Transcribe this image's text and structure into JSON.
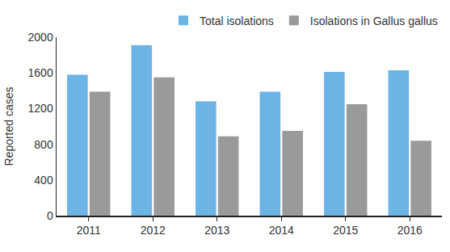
{
  "chart_data": {
    "type": "bar",
    "categories": [
      "2011",
      "2012",
      "2013",
      "2014",
      "2015",
      "2016"
    ],
    "series": [
      {
        "name": "Total isolations",
        "color": "#6cb4e6",
        "values": [
          1580,
          1910,
          1280,
          1390,
          1610,
          1630
        ]
      },
      {
        "name": "Isolations in Gallus gallus",
        "color": "#9a9a9a",
        "values": [
          1390,
          1550,
          890,
          950,
          1250,
          840
        ]
      }
    ],
    "y_label": "Reported cases",
    "ylim": [
      0,
      2000
    ],
    "yticks": [
      0,
      400,
      800,
      1200,
      1600,
      2000
    ],
    "grid": false,
    "legend": "top"
  }
}
